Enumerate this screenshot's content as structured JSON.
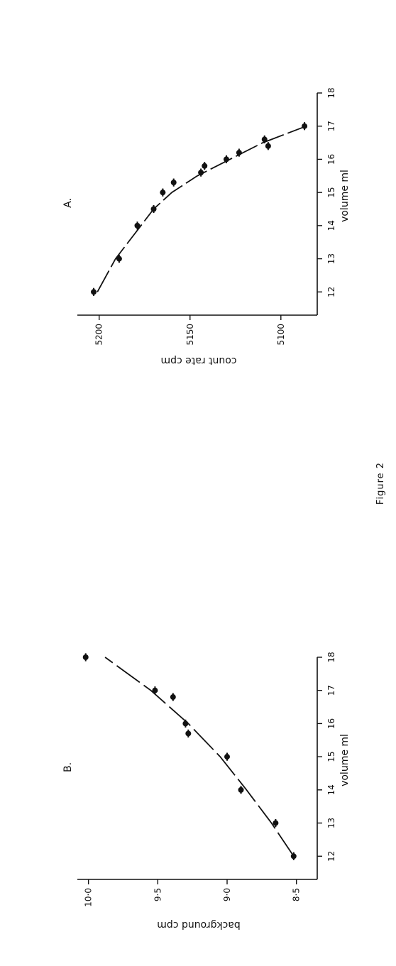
{
  "figure_caption": "Figure 2",
  "chart_data": [
    {
      "type": "scatter",
      "panel_label": "A.",
      "xlabel": "volume ml",
      "ylabel": "count rate cpm",
      "xlim": [
        11.3,
        18
      ],
      "ylim": [
        5080,
        5212
      ],
      "x_ticks": [
        12,
        13,
        14,
        15,
        16,
        17,
        18
      ],
      "y_ticks": [
        5100,
        5150,
        5200
      ],
      "y_tick_labels": [
        "5100",
        "5150",
        "5200"
      ],
      "points": [
        {
          "x": 12.0,
          "y": 5203,
          "err": 0.12
        },
        {
          "x": 13.0,
          "y": 5189,
          "err": 0.12
        },
        {
          "x": 14.0,
          "y": 5179,
          "err": 0.12
        },
        {
          "x": 14.5,
          "y": 5170,
          "err": 0.12
        },
        {
          "x": 15.0,
          "y": 5165,
          "err": 0.12
        },
        {
          "x": 15.3,
          "y": 5159,
          "err": 0.12
        },
        {
          "x": 15.6,
          "y": 5144,
          "err": 0.12
        },
        {
          "x": 15.8,
          "y": 5142,
          "err": 0.12
        },
        {
          "x": 16.0,
          "y": 5130,
          "err": 0.12
        },
        {
          "x": 16.2,
          "y": 5123,
          "err": 0.12
        },
        {
          "x": 16.4,
          "y": 5107,
          "err": 0.12
        },
        {
          "x": 16.6,
          "y": 5109,
          "err": 0.12
        },
        {
          "x": 17.0,
          "y": 5087,
          "err": 0.12
        }
      ],
      "fit_curve": {
        "x": [
          12,
          13,
          14,
          14.5,
          15,
          15.5,
          16,
          16.5,
          17
        ],
        "y": [
          5201,
          5191,
          5177,
          5170,
          5160,
          5146,
          5128,
          5110,
          5086
        ]
      }
    },
    {
      "type": "scatter",
      "panel_label": "B.",
      "xlabel": "volume ml",
      "ylabel": "background cpm",
      "xlim": [
        11.3,
        18
      ],
      "ylim": [
        8.35,
        10.08
      ],
      "x_ticks": [
        12,
        13,
        14,
        15,
        16,
        17,
        18
      ],
      "y_ticks": [
        8.5,
        9.0,
        9.5,
        10.0
      ],
      "y_tick_labels": [
        "8·5",
        "9·0",
        "9·5",
        "10·0"
      ],
      "points": [
        {
          "x": 12.0,
          "y": 8.52,
          "err": 0.12
        },
        {
          "x": 13.0,
          "y": 8.65,
          "err": 0.12
        },
        {
          "x": 14.0,
          "y": 8.9,
          "err": 0.12
        },
        {
          "x": 15.0,
          "y": 9.0,
          "err": 0.12
        },
        {
          "x": 15.7,
          "y": 9.28,
          "err": 0.12
        },
        {
          "x": 16.0,
          "y": 9.3,
          "err": 0.12
        },
        {
          "x": 16.8,
          "y": 9.39,
          "err": 0.12
        },
        {
          "x": 17.0,
          "y": 9.52,
          "err": 0.12
        },
        {
          "x": 18.0,
          "y": 10.02,
          "err": 0.12
        }
      ],
      "fit_curve": {
        "x": [
          12,
          13,
          14,
          15,
          16,
          17,
          18
        ],
        "y": [
          8.52,
          8.68,
          8.86,
          9.05,
          9.28,
          9.55,
          9.88
        ]
      }
    }
  ]
}
